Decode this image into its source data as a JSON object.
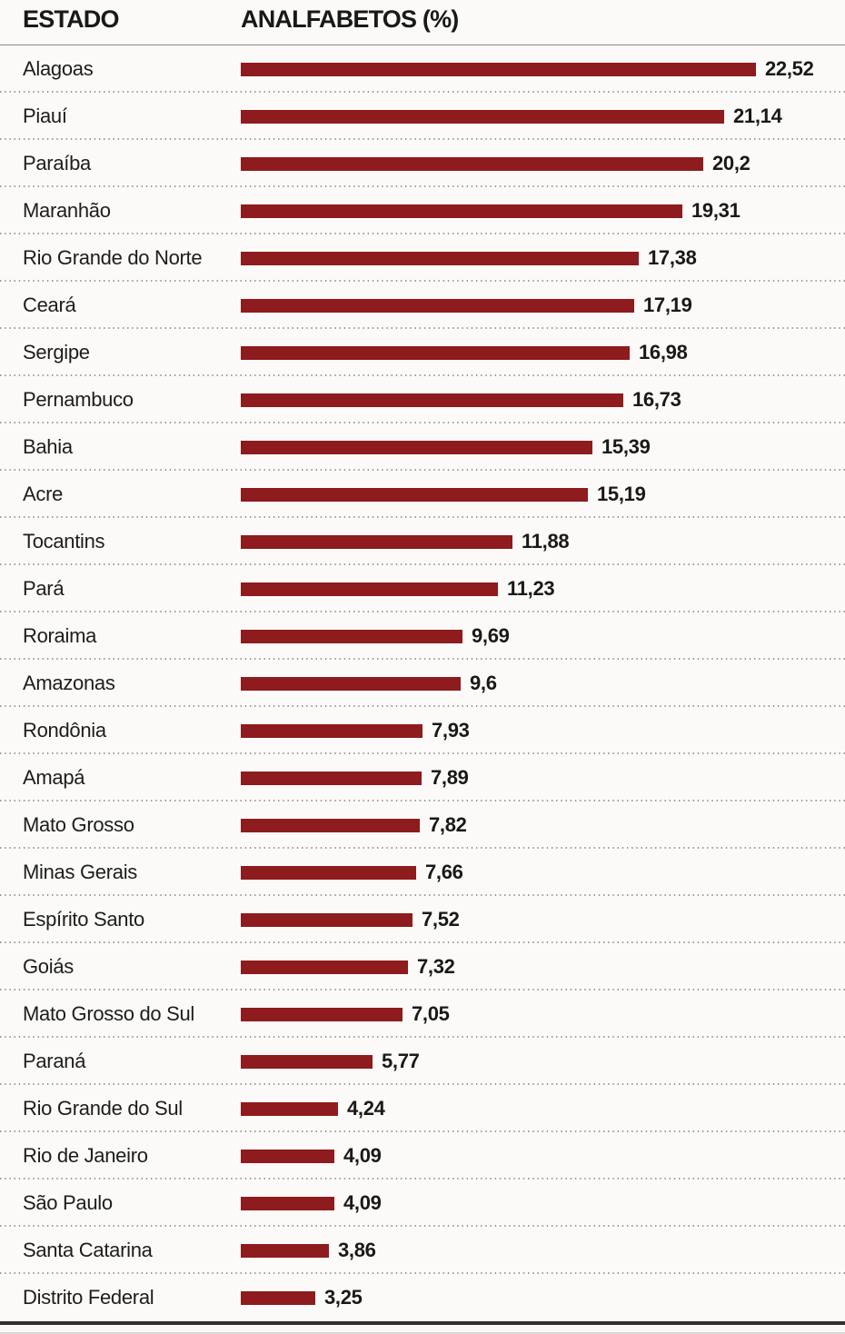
{
  "header": {
    "col_state": "ESTADO",
    "col_value": "ANALFABETOS (%)"
  },
  "colors": {
    "bar": "#8e1b1d",
    "text": "#1d1d1b",
    "header_rule": "#8a8a8a",
    "dotted_separator": "#9b9b9b",
    "bottom_rule": "#32302e",
    "background": "#fbfaf8"
  },
  "chart_data": {
    "type": "bar",
    "orientation": "horizontal",
    "title": "ANALFABETOS (%)",
    "xlabel": "ANALFABETOS (%)",
    "ylabel": "ESTADO",
    "xlim": [
      0,
      22.52
    ],
    "grid": false,
    "legend": false,
    "bar_color": "#8e1b1d",
    "categories": [
      "Alagoas",
      "Piauí",
      "Paraíba",
      "Maranhão",
      "Rio Grande do Norte",
      "Ceará",
      "Sergipe",
      "Pernambuco",
      "Bahia",
      "Acre",
      "Tocantins",
      "Pará",
      "Roraima",
      "Amazonas",
      "Rondônia",
      "Amapá",
      "Mato Grosso",
      "Minas Gerais",
      "Espírito Santo",
      "Goiás",
      "Mato Grosso do Sul",
      "Paraná",
      "Rio Grande do Sul",
      "Rio de Janeiro",
      "São Paulo",
      "Santa Catarina",
      "Distrito Federal"
    ],
    "values": [
      22.52,
      21.14,
      20.2,
      19.31,
      17.38,
      17.19,
      16.98,
      16.73,
      15.39,
      15.19,
      11.88,
      11.23,
      9.69,
      9.6,
      7.93,
      7.89,
      7.82,
      7.66,
      7.52,
      7.32,
      7.05,
      5.77,
      4.24,
      4.09,
      4.09,
      3.86,
      3.25
    ],
    "value_labels": [
      "22,52",
      "21,14",
      "20,2",
      "19,31",
      "17,38",
      "17,19",
      "16,98",
      "16,73",
      "15,39",
      "15,19",
      "11,88",
      "11,23",
      "9,69",
      "9,6",
      "7,93",
      "7,89",
      "7,82",
      "7,66",
      "7,52",
      "7,32",
      "7,05",
      "5,77",
      "4,24",
      "4,09",
      "4,09",
      "3,86",
      "3,25"
    ]
  }
}
